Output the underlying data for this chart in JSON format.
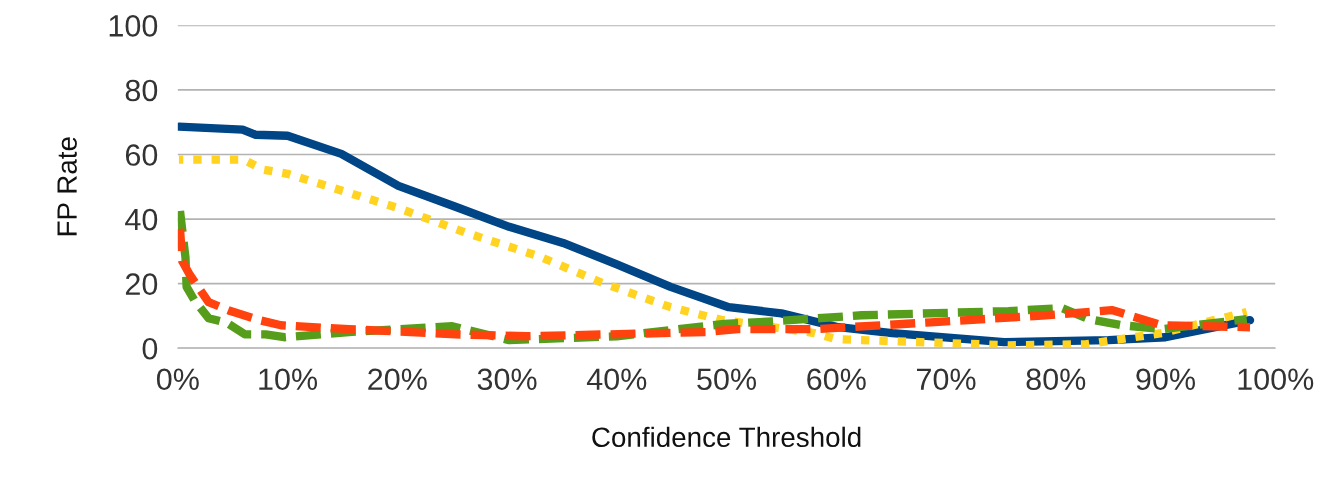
{
  "chart_data": {
    "type": "line",
    "xlabel": "Confidence Threshold",
    "ylabel": "FP Rate",
    "xlim": [
      0,
      100
    ],
    "ylim": [
      0,
      100
    ],
    "xticks": [
      {
        "value": 0,
        "label": "0%"
      },
      {
        "value": 10,
        "label": "10%"
      },
      {
        "value": 20,
        "label": "20%"
      },
      {
        "value": 30,
        "label": "30%"
      },
      {
        "value": 40,
        "label": "40%"
      },
      {
        "value": 50,
        "label": "50%"
      },
      {
        "value": 60,
        "label": "60%"
      },
      {
        "value": 70,
        "label": "70%"
      },
      {
        "value": 80,
        "label": "80%"
      },
      {
        "value": 90,
        "label": "90%"
      },
      {
        "value": 100,
        "label": "100%"
      }
    ],
    "yticks": [
      0,
      20,
      40,
      60,
      80,
      100
    ],
    "grid": "y",
    "series": [
      {
        "color": "#004586",
        "line_style": "solid",
        "x": [
          0.1,
          5.9,
          7.1,
          10,
          14.9,
          20.1,
          25.3,
          30.2,
          35.1,
          40,
          44.9,
          50.2,
          55,
          60.2,
          65.1,
          75.3,
          84.8,
          90,
          97.7
        ],
        "values": [
          68.6,
          67.7,
          66.1,
          65.8,
          60.2,
          50.3,
          43.8,
          37.6,
          32.6,
          26,
          19,
          12.7,
          10.8,
          6.5,
          4.7,
          1.9,
          2.5,
          3.4,
          8.7
        ]
      },
      {
        "color": "#ffd320",
        "line_style": "dotted",
        "x": [
          0.1,
          6,
          7.8,
          10,
          14,
          20,
          26.3,
          32.8,
          38.7,
          44.9,
          49.5,
          58,
          60,
          75.7,
          82.7,
          89.7,
          97.4
        ],
        "values": [
          58.4,
          58.4,
          55.3,
          54,
          49.8,
          43.5,
          35.7,
          28.6,
          20.2,
          12.7,
          8.8,
          4.7,
          2.8,
          0.9,
          1.2,
          4.7,
          11.2
        ]
      },
      {
        "color": "#579d1c",
        "line_style": "dashed",
        "x": [
          0.2,
          0.7,
          0.8,
          1.5,
          2.8,
          4.5,
          6.1,
          8,
          9.7,
          15.6,
          25,
          30.2,
          40,
          49.8,
          54.6,
          62.3,
          75.7,
          80.6,
          83,
          86.1,
          89.7,
          97.4
        ],
        "values": [
          42.5,
          28,
          19,
          14.9,
          9.3,
          7.8,
          4.3,
          4.3,
          3.4,
          5,
          6.8,
          2.5,
          3.7,
          7.5,
          8.4,
          10.2,
          11.5,
          12.4,
          9,
          7.1,
          5.9,
          9
        ]
      },
      {
        "color": "#ff420e",
        "line_style": "dashed",
        "x": [
          0.2,
          0.4,
          1.1,
          2.8,
          4.8,
          7.4,
          9.4,
          15.6,
          25.3,
          31.8,
          48.1,
          51,
          58,
          68.6,
          79.1,
          85.1,
          89.7,
          97.7
        ],
        "values": [
          37,
          27,
          22.7,
          14.3,
          11.5,
          8.7,
          7.1,
          5.9,
          4.3,
          3.7,
          5,
          5.9,
          5.9,
          8,
          10.2,
          11.8,
          7.1,
          6.5
        ]
      }
    ]
  }
}
